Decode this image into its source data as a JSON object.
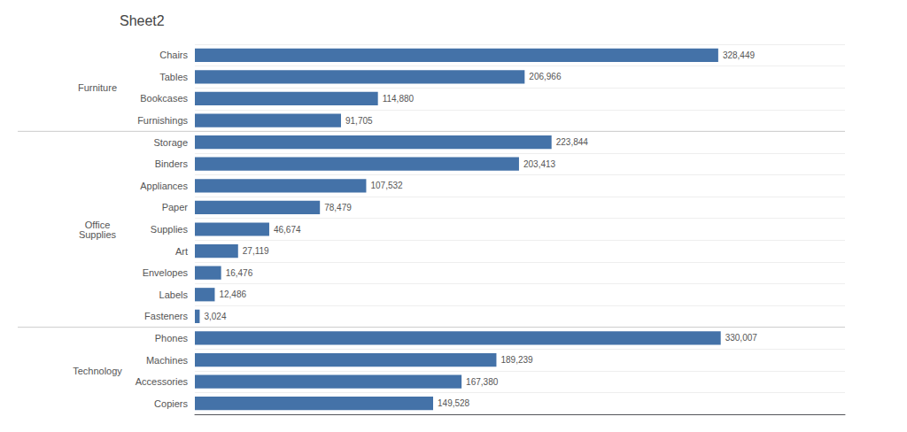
{
  "chart_data": {
    "type": "bar",
    "title": "Sheet2",
    "orientation": "horizontal",
    "color": "#4472a8",
    "categories": [
      "Chairs",
      "Tables",
      "Bookcases",
      "Furnishings",
      "Storage",
      "Binders",
      "Appliances",
      "Paper",
      "Supplies",
      "Art",
      "Envelopes",
      "Labels",
      "Fasteners",
      "Phones",
      "Machines",
      "Accessories",
      "Copiers"
    ],
    "category_groups": [
      "Furniture",
      null,
      null,
      null,
      "Office\nSupplies",
      null,
      null,
      null,
      null,
      null,
      null,
      null,
      null,
      "Technology",
      null,
      null,
      null
    ],
    "values": [
      328449,
      206966,
      114880,
      91705,
      223844,
      203413,
      107532,
      78479,
      46674,
      27119,
      16476,
      12486,
      3024,
      330007,
      189239,
      167380,
      149528
    ],
    "value_labels": [
      "328,449",
      "206,966",
      "114,880",
      "91,705",
      "223,844",
      "203,413",
      "107,532",
      "78,479",
      "46,674",
      "27,119",
      "16,476",
      "12,486",
      "3,024",
      "330,007",
      "189,239",
      "167,380",
      "149,528"
    ],
    "data_labels": true,
    "xlim": [
      0,
      408000
    ],
    "xticks": [],
    "tick_labels": "y",
    "grid": true
  }
}
